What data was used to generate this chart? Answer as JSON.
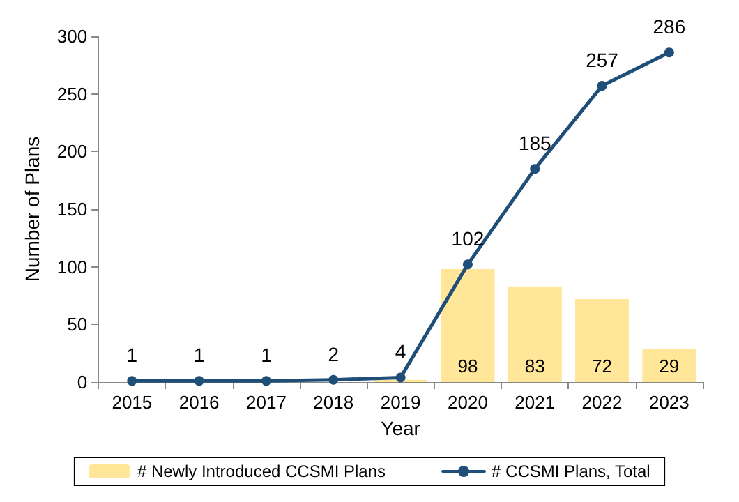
{
  "chart_data": {
    "type": "bar",
    "xlabel": "Year",
    "ylabel": "Number of Plans",
    "categories": [
      "2015",
      "2016",
      "2017",
      "2018",
      "2019",
      "2020",
      "2021",
      "2022",
      "2023"
    ],
    "series": [
      {
        "name": "# Newly Introduced CCSMI Plans",
        "color": "#ffe699",
        "values": [
          null,
          null,
          null,
          null,
          2,
          98,
          83,
          72,
          29
        ],
        "value_labels": [
          null,
          null,
          null,
          null,
          null,
          "98",
          "83",
          "72",
          "29"
        ]
      },
      {
        "name": "# CCSMI Plans, Total",
        "type": "line",
        "color": "#1f4e79",
        "values": [
          1,
          1,
          1,
          2,
          4,
          102,
          185,
          257,
          286
        ],
        "data_labels": true
      }
    ],
    "ylim": [
      0,
      300
    ],
    "yticks": [
      0,
      50,
      100,
      150,
      200,
      250,
      300
    ],
    "grid": false,
    "legend": "bottom",
    "marker": "circle",
    "line_style": "solid"
  }
}
